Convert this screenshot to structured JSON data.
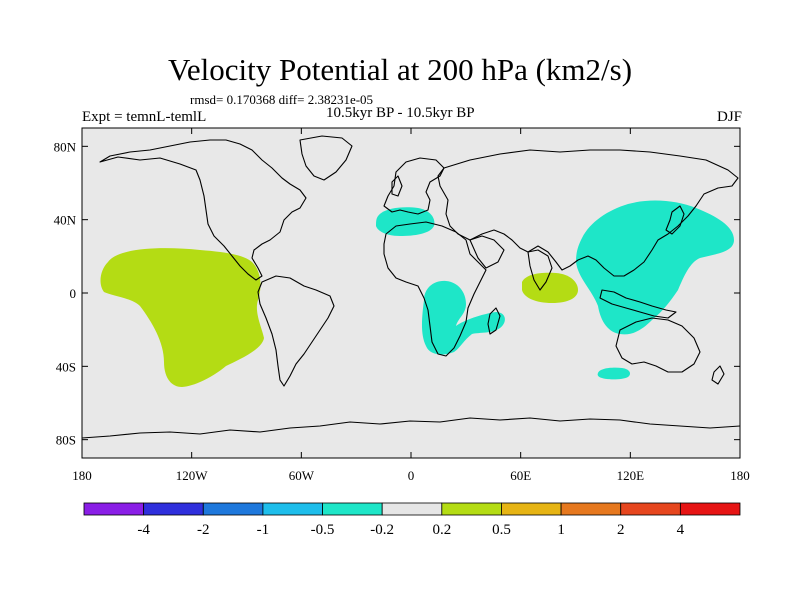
{
  "title": "Velocity Potential at 200 hPa (km2/s)",
  "stats": "rmsd= 0.170368 diff= 2.38231e-05",
  "experiment": "Expt = temnL-temlL",
  "period": "10.5kyr BP - 10.5kyr BP",
  "season": "DJF",
  "chart_data": {
    "type": "contour-map",
    "projection": "cylindrical-equidistant",
    "lon_range": [
      -180,
      180
    ],
    "lat_range": [
      -90,
      90
    ],
    "lon_ticks": [
      {
        "value": -180,
        "label": "180"
      },
      {
        "value": -120,
        "label": "120W"
      },
      {
        "value": -60,
        "label": "60W"
      },
      {
        "value": 0,
        "label": "0"
      },
      {
        "value": 60,
        "label": "60E"
      },
      {
        "value": 120,
        "label": "120E"
      },
      {
        "value": 180,
        "label": "180"
      }
    ],
    "lat_ticks": [
      {
        "value": 80,
        "label": "80N"
      },
      {
        "value": 40,
        "label": "40N"
      },
      {
        "value": 0,
        "label": "0"
      },
      {
        "value": -40,
        "label": "40S"
      },
      {
        "value": -80,
        "label": "80S"
      }
    ],
    "background_color": "#e8e8e8",
    "colorbar": {
      "colors": [
        "#8a1ee6",
        "#2f2fdc",
        "#1e78dc",
        "#1ebeeb",
        "#1ee6c8",
        "#e6e6e6",
        "#b4dc14",
        "#e6b414",
        "#e6781e",
        "#e6461e",
        "#e61414"
      ],
      "levels": [
        "-4",
        "-2",
        "-1",
        "-0.5",
        "-0.2",
        "0.2",
        "0.5",
        "1",
        "2",
        "4"
      ]
    },
    "regions": [
      {
        "name": "east-pacific-positive",
        "level": "0.2 to 0.5",
        "color": "#b4dc14",
        "lon_center": -116,
        "lat_center": -5
      },
      {
        "name": "maritime-continent-negative",
        "level": "-0.5 to -0.2",
        "color": "#1ee6c8",
        "lon_center": 125,
        "lat_center": 20
      },
      {
        "name": "africa-negative",
        "level": "-0.5 to -0.2",
        "color": "#1ee6c8",
        "lon_center": 25,
        "lat_center": -15
      },
      {
        "name": "mediterranean-negative",
        "level": "-0.5 to -0.2",
        "color": "#1ee6c8",
        "lon_center": -3,
        "lat_center": 40
      },
      {
        "name": "indian-ocean-positive",
        "level": "0.2 to 0.5",
        "color": "#b4dc14",
        "lon_center": 75,
        "lat_center": 4
      },
      {
        "name": "south-australia-negative",
        "level": "-0.5 to -0.2",
        "color": "#1ee6c8",
        "lon_center": 114,
        "lat_center": -35
      }
    ]
  }
}
